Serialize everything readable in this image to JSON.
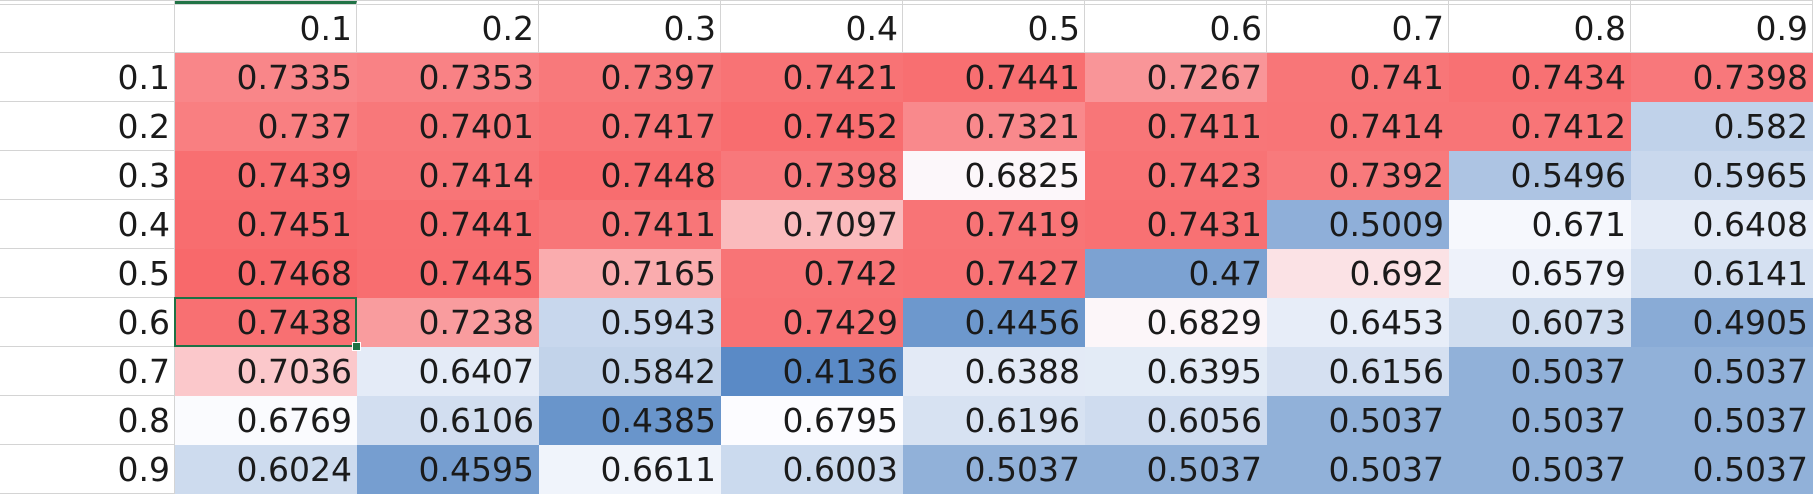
{
  "sheet": {
    "column_headers": [
      "0.1",
      "0.2",
      "0.3",
      "0.4",
      "0.5",
      "0.6",
      "0.7",
      "0.8",
      "0.9"
    ],
    "row_headers": [
      "0.1",
      "0.2",
      "0.3",
      "0.4",
      "0.5",
      "0.6",
      "0.7",
      "0.8",
      "0.9"
    ],
    "values": [
      [
        "0.7335",
        "0.7353",
        "0.7397",
        "0.7421",
        "0.7441",
        "0.7267",
        "0.741",
        "0.7434",
        "0.7398"
      ],
      [
        "0.737",
        "0.7401",
        "0.7417",
        "0.7452",
        "0.7321",
        "0.7411",
        "0.7414",
        "0.7412",
        "0.582"
      ],
      [
        "0.7439",
        "0.7414",
        "0.7448",
        "0.7398",
        "0.6825",
        "0.7423",
        "0.7392",
        "0.5496",
        "0.5965"
      ],
      [
        "0.7451",
        "0.7441",
        "0.7411",
        "0.7097",
        "0.7419",
        "0.7431",
        "0.5009",
        "0.671",
        "0.6408"
      ],
      [
        "0.7468",
        "0.7445",
        "0.7165",
        "0.742",
        "0.7427",
        "0.47",
        "0.692",
        "0.6579",
        "0.6141"
      ],
      [
        "0.7438",
        "0.7238",
        "0.5943",
        "0.7429",
        "0.4456",
        "0.6829",
        "0.6453",
        "0.6073",
        "0.4905"
      ],
      [
        "0.7036",
        "0.6407",
        "0.5842",
        "0.4136",
        "0.6388",
        "0.6395",
        "0.6156",
        "0.5037",
        "0.5037"
      ],
      [
        "0.6769",
        "0.6106",
        "0.4385",
        "0.6795",
        "0.6196",
        "0.6056",
        "0.5037",
        "0.5037",
        "0.5037"
      ],
      [
        "0.6024",
        "0.4595",
        "0.6611",
        "0.6003",
        "0.5037",
        "0.5037",
        "0.5037",
        "0.5037",
        "0.5037"
      ]
    ],
    "selected_cell": {
      "row": 5,
      "col": 0
    },
    "color_scale": {
      "min_color": "#5a8ac6",
      "mid_color": "#fcfcff",
      "max_color": "#f8696b",
      "min_value": 0.4136,
      "mid_value": 0.6802,
      "max_value": 0.7468
    },
    "colors": {
      "gridline": "#d4d4d4",
      "selection": "#1e7145",
      "text": "#1a1a1a"
    }
  }
}
